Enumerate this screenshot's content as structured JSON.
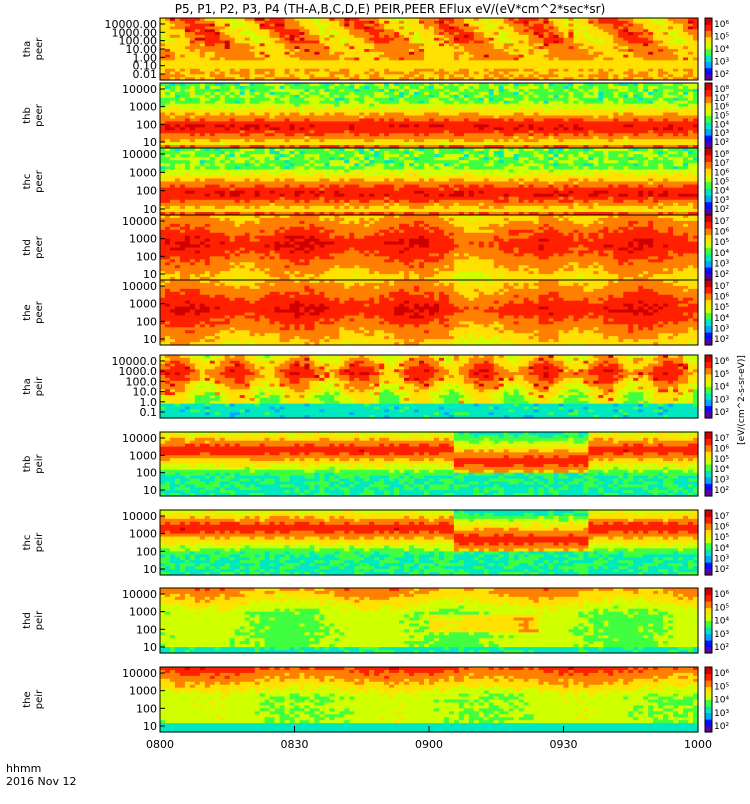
{
  "chart_data": {
    "type": "heatmap",
    "title": "P5, P1, P2, P3, P4 (TH-A,B,C,D,E) PEIR,PEER EFlux eV/(eV*cm^2*sec*sr)",
    "x_ticks": [
      "0800",
      "0830",
      "0900",
      "0930",
      "1000"
    ],
    "xlim": [
      "0800",
      "1000"
    ],
    "x_footer": [
      "hhmm",
      "2016 Nov 12"
    ],
    "colorbar_label": "[eV/(cm^2-s-sr-eV)]",
    "panels": [
      {
        "probe": "tha",
        "species": "peer",
        "ylog": true,
        "ytick_labels": [
          "10000.00",
          "1000.00",
          "100.00",
          "10.00",
          "1.00",
          "0.10",
          "0.01"
        ],
        "cbar_ticks": [
          "10^6",
          "10^5",
          "10^4",
          "10^3",
          "10^2"
        ],
        "profile": "tha_peer"
      },
      {
        "probe": "thb",
        "species": "peer",
        "ylog": true,
        "ytick_labels": [
          "10000",
          "1000",
          "100",
          "10"
        ],
        "cbar_ticks": [
          "10^8",
          "10^7",
          "10^6",
          "10^5",
          "10^4",
          "10^3",
          "10^2"
        ],
        "profile": "electron"
      },
      {
        "probe": "thc",
        "species": "peer",
        "ylog": true,
        "ytick_labels": [
          "10000",
          "1000",
          "100",
          "10"
        ],
        "cbar_ticks": [
          "10^8",
          "10^7",
          "10^6",
          "10^5",
          "10^4",
          "10^3",
          "10^2"
        ],
        "profile": "electron"
      },
      {
        "probe": "thd",
        "species": "peer",
        "ylog": true,
        "ytick_labels": [
          "10000",
          "1000",
          "100",
          "10"
        ],
        "cbar_ticks": [
          "10^7",
          "10^6",
          "10^5",
          "10^4",
          "10^3",
          "10^2"
        ],
        "profile": "thd_peer"
      },
      {
        "probe": "the",
        "species": "peer",
        "ylog": true,
        "ytick_labels": [
          "10000",
          "1000",
          "100",
          "10"
        ],
        "cbar_ticks": [
          "10^7",
          "10^6",
          "10^5",
          "10^4",
          "10^3",
          "10^2"
        ],
        "profile": "thd_peer"
      },
      {
        "probe": "tha",
        "species": "peir",
        "ylog": true,
        "ytick_labels": [
          "10000.0",
          "1000.0",
          "100.0",
          "10.0",
          "1.0",
          "0.1"
        ],
        "cbar_ticks": [
          "10^6",
          "10^5",
          "10^4",
          "10^3",
          "10^2"
        ],
        "profile": "tha_peir"
      },
      {
        "probe": "thb",
        "species": "peir",
        "ylog": true,
        "ytick_labels": [
          "10000",
          "1000",
          "100",
          "10"
        ],
        "cbar_ticks": [
          "10^7",
          "10^6",
          "10^5",
          "10^4",
          "10^3",
          "10^2"
        ],
        "profile": "ion"
      },
      {
        "probe": "thc",
        "species": "peir",
        "ylog": true,
        "ytick_labels": [
          "10000",
          "1000",
          "100",
          "10"
        ],
        "cbar_ticks": [
          "10^7",
          "10^6",
          "10^5",
          "10^4",
          "10^3",
          "10^2"
        ],
        "profile": "ion"
      },
      {
        "probe": "thd",
        "species": "peir",
        "ylog": true,
        "ytick_labels": [
          "10000",
          "1000",
          "100",
          "10"
        ],
        "cbar_ticks": [
          "10^6",
          "10^5",
          "10^4",
          "10^3",
          "10^2"
        ],
        "profile": "thd_peir"
      },
      {
        "probe": "the",
        "species": "peir",
        "ylog": true,
        "ytick_labels": [
          "10000",
          "1000",
          "100",
          "10"
        ],
        "cbar_ticks": [
          "10^6",
          "10^5",
          "10^4",
          "10^3",
          "10^2"
        ],
        "profile": "the_peir"
      }
    ],
    "colormap": [
      "#5a00a0",
      "#0010ff",
      "#00a8ff",
      "#00e8c0",
      "#40ff40",
      "#d0ff00",
      "#ffe000",
      "#ff8000",
      "#ff2000",
      "#d00000"
    ]
  }
}
